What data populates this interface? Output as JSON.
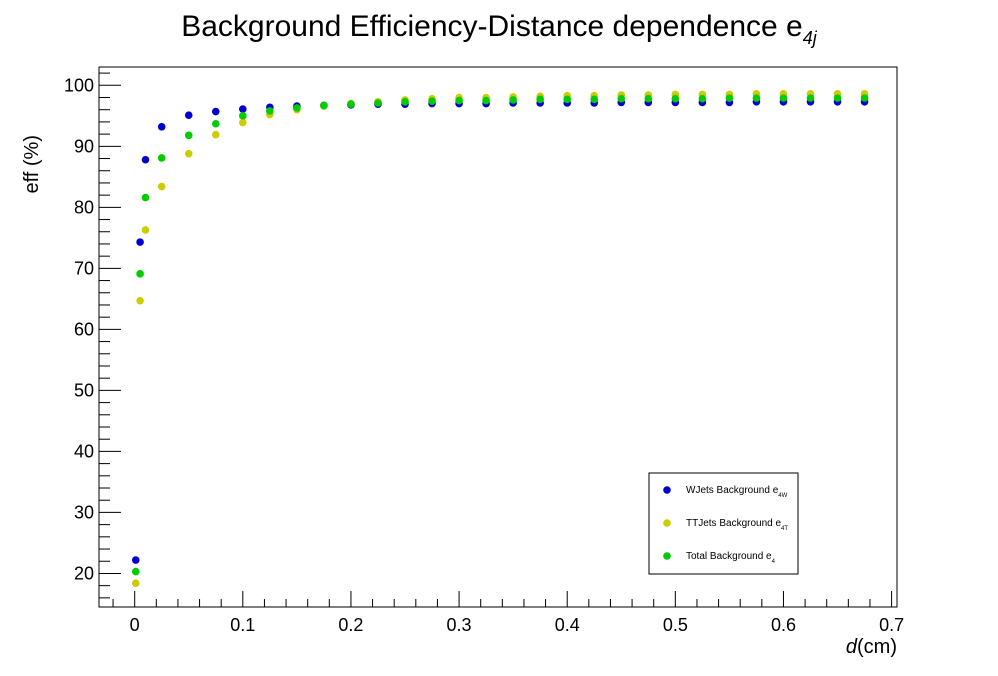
{
  "chart_data": {
    "type": "scatter",
    "title": "Background Efficiency-Distance dependence e",
    "title_subscript": "4j",
    "xlabel_var": "d",
    "xlabel_unit": "(cm)",
    "ylabel": "eff (%)",
    "xlim": [
      -0.033,
      0.705
    ],
    "ylim": [
      14.5,
      103
    ],
    "x_ticks": [
      0,
      0.1,
      0.2,
      0.3,
      0.4,
      0.5,
      0.6,
      0.7
    ],
    "x_tick_labels": [
      "0",
      "0.1",
      "0.2",
      "0.3",
      "0.4",
      "0.5",
      "0.6",
      "0.7"
    ],
    "y_ticks": [
      20,
      30,
      40,
      50,
      60,
      70,
      80,
      90,
      100
    ],
    "y_tick_labels": [
      "20",
      "30",
      "40",
      "50",
      "60",
      "70",
      "80",
      "90",
      "100"
    ],
    "grid": false,
    "legend_position": "bottom-right",
    "x": [
      0.001,
      0.005,
      0.01,
      0.025,
      0.05,
      0.075,
      0.1,
      0.125,
      0.15,
      0.175,
      0.2,
      0.225,
      0.25,
      0.275,
      0.3,
      0.325,
      0.35,
      0.375,
      0.4,
      0.425,
      0.45,
      0.475,
      0.5,
      0.525,
      0.55,
      0.575,
      0.6,
      0.625,
      0.65,
      0.675
    ],
    "series": [
      {
        "name": "WJets Background e",
        "name_subscript": "4W",
        "color": "#0000cc",
        "values": [
          22.2,
          74.3,
          87.8,
          93.2,
          95.1,
          95.7,
          96.1,
          96.4,
          96.6,
          96.7,
          96.8,
          96.9,
          96.9,
          97.0,
          97.0,
          97.0,
          97.1,
          97.1,
          97.1,
          97.1,
          97.2,
          97.2,
          97.2,
          97.2,
          97.2,
          97.3,
          97.3,
          97.3,
          97.3,
          97.3
        ]
      },
      {
        "name": "TTJets Background e",
        "name_subscript": "4T",
        "color": "#cccc00",
        "values": [
          18.4,
          64.7,
          76.3,
          83.4,
          88.8,
          91.9,
          93.9,
          95.2,
          96.0,
          96.6,
          97.0,
          97.3,
          97.6,
          97.8,
          98.0,
          98.0,
          98.1,
          98.2,
          98.3,
          98.3,
          98.4,
          98.4,
          98.5,
          98.5,
          98.5,
          98.6,
          98.6,
          98.6,
          98.6,
          98.6
        ]
      },
      {
        "name": "Total Background e",
        "name_subscript": "4",
        "color": "#00cc00",
        "values": [
          20.3,
          69.1,
          81.6,
          88.1,
          91.8,
          93.7,
          95.0,
          95.8,
          96.3,
          96.7,
          96.9,
          97.1,
          97.3,
          97.4,
          97.5,
          97.5,
          97.6,
          97.7,
          97.7,
          97.7,
          97.8,
          97.8,
          97.8,
          97.8,
          97.9,
          97.9,
          97.9,
          97.9,
          97.9,
          97.9
        ]
      }
    ]
  }
}
